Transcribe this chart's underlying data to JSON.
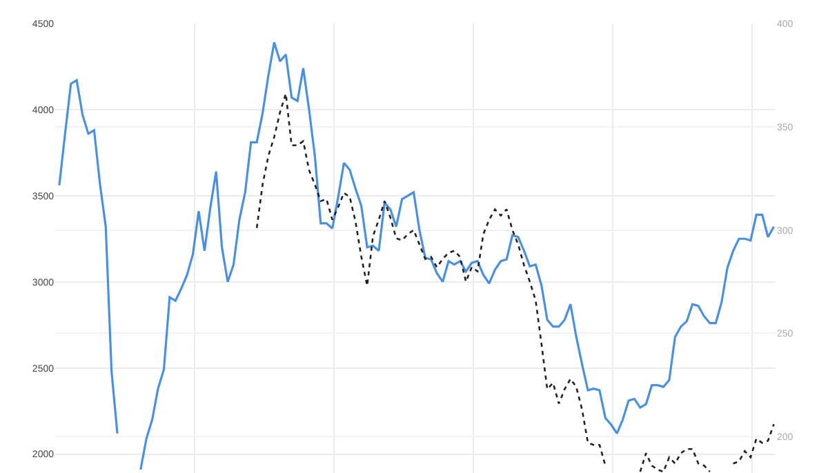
{
  "chart_data": {
    "type": "line",
    "categories": [
      null,
      null,
      null,
      null,
      null,
      null,
      null,
      null,
      null,
      null,
      null,
      null,
      null,
      null,
      null,
      null,
      null,
      null,
      null,
      null,
      null,
      null,
      null,
      null,
      null,
      null,
      null,
      null,
      null,
      null,
      null,
      null,
      null,
      null,
      null,
      null,
      null,
      null,
      null,
      null,
      null,
      null,
      null,
      null,
      null,
      null,
      null,
      null,
      null,
      null,
      null,
      null,
      null,
      null,
      null,
      null,
      null,
      null,
      null,
      null,
      null,
      null,
      null,
      null,
      null,
      null,
      null,
      null,
      null,
      null,
      null,
      null,
      null,
      null,
      null,
      null,
      null,
      null,
      null,
      null,
      null,
      null,
      null,
      null,
      null,
      null,
      null,
      null,
      null,
      null,
      null,
      null,
      null,
      null,
      null,
      null,
      null,
      null,
      null,
      null,
      null,
      null,
      null,
      null,
      null,
      null,
      null,
      null,
      null,
      null,
      null,
      null,
      null,
      null,
      null,
      null,
      null,
      null,
      null,
      null,
      null,
      null,
      null,
      null
    ],
    "series": [
      {
        "color": "#4a90e2",
        "line_style": "solid",
        "values": [
          3560,
          3860,
          4150,
          4170,
          3970,
          3860,
          3880,
          3570,
          3320,
          2480,
          2120,
          null,
          null,
          null,
          null,
          null,
          null,
          null,
          null,
          null,
          null,
          null,
          null,
          null,
          null,
          null,
          null,
          null,
          null,
          null,
          null,
          null,
          null,
          null,
          null,
          null,
          null,
          null,
          null,
          null,
          null,
          null,
          null,
          null,
          null,
          null,
          null,
          null,
          null,
          null,
          null,
          null,
          null,
          null,
          null,
          null,
          null,
          null,
          null,
          null,
          null,
          null,
          null,
          null,
          null,
          null,
          null,
          null,
          null,
          null,
          null,
          null,
          null,
          null,
          null,
          null,
          null,
          null,
          null,
          null,
          null,
          null,
          null,
          null,
          null,
          null,
          null,
          null,
          null,
          null,
          null,
          null,
          null,
          null,
          null,
          null,
          null,
          null,
          null,
          null,
          null,
          null,
          null,
          null,
          null,
          null,
          null,
          null,
          null,
          null,
          null,
          null,
          null,
          null,
          null,
          null,
          null,
          null,
          null,
          null,
          null,
          null,
          null,
          null
        ]
      },
      {
        "color": "#4a90e2",
        "line_style": "solid",
        "values": [
          null,
          null,
          null,
          null,
          null,
          null,
          null,
          null,
          null,
          null,
          null,
          null,
          null,
          null,
          1910,
          2090,
          2200,
          2380,
          2490,
          2910,
          2890,
          2960,
          3040,
          3160,
          3410,
          3180,
          3430,
          3640,
          3200,
          3000,
          3100,
          3360,
          3520,
          3810,
          3810,
          3980,
          4200,
          4390,
          4280,
          4320,
          4070,
          4050,
          4240,
          4000,
          3730,
          3340,
          3340,
          3310,
          3490,
          3690,
          3650,
          3540,
          3440,
          3200,
          3210,
          3180,
          3460,
          3420,
          3320,
          3480,
          3500,
          3520,
          3300,
          3140,
          3130,
          3050,
          3000,
          3120,
          3100,
          3120,
          3060,
          3110,
          3120,
          3040,
          2990,
          3070,
          3120,
          3130,
          3270,
          3260,
          3180,
          3090,
          3100,
          2980,
          2780,
          2740,
          2740,
          2780,
          2870,
          2680,
          2520,
          2370,
          2380,
          2370,
          2210,
          2170,
          2120,
          2200,
          2310,
          2320,
          2270,
          2290,
          2400,
          2400,
          2390,
          2430,
          2680,
          2740,
          2770,
          2870,
          2860,
          2800,
          2760,
          2760,
          2880,
          3080,
          3180,
          3250,
          3250,
          3240,
          3390,
          3390,
          3260,
          3320
        ]
      },
      {
        "color": "#222222",
        "line_style": "dotted",
        "axis": "y2",
        "values": [
          null,
          null,
          null,
          null,
          null,
          null,
          null,
          null,
          null,
          null,
          null,
          null,
          null,
          null,
          null,
          null,
          null,
          null,
          null,
          null,
          null,
          null,
          null,
          null,
          null,
          null,
          null,
          null,
          null,
          null,
          null,
          null,
          null,
          null,
          301,
          322,
          336,
          345,
          357,
          366,
          341,
          341,
          343,
          329,
          322,
          314,
          315,
          305,
          311,
          318,
          316,
          304,
          287,
          273,
          297,
          305,
          314,
          306,
          296,
          295,
          298,
          300,
          293,
          286,
          287,
          282,
          286,
          289,
          290,
          287,
          275,
          282,
          280,
          298,
          305,
          310,
          307,
          310,
          300,
          293,
          283,
          275,
          266,
          245,
          223,
          226,
          216,
          223,
          228,
          224,
          213,
          197,
          196,
          196,
          186,
          null,
          null,
          null,
          null,
          null,
          null,
          null,
          null,
          null,
          null,
          null,
          null,
          null,
          null,
          null,
          null,
          null,
          null,
          null,
          null,
          null,
          null,
          null,
          null,
          null,
          null,
          null,
          null,
          null
        ]
      },
      {
        "color": "#222222",
        "line_style": "dotted",
        "axis": "y2",
        "values": [
          null,
          null,
          null,
          null,
          null,
          null,
          null,
          null,
          null,
          null,
          null,
          null,
          null,
          null,
          null,
          null,
          null,
          null,
          null,
          null,
          null,
          null,
          null,
          null,
          null,
          null,
          null,
          null,
          null,
          null,
          null,
          null,
          null,
          null,
          null,
          null,
          null,
          null,
          null,
          null,
          null,
          null,
          null,
          null,
          null,
          null,
          null,
          null,
          null,
          null,
          null,
          null,
          null,
          null,
          null,
          null,
          null,
          null,
          null,
          null,
          null,
          null,
          null,
          null,
          null,
          null,
          null,
          null,
          null,
          null,
          null,
          null,
          null,
          null,
          null,
          null,
          null,
          null,
          null,
          null,
          null,
          null,
          null,
          null,
          null,
          null,
          null,
          null,
          null,
          null,
          null,
          null,
          null,
          null,
          null,
          null,
          null,
          null,
          null,
          null,
          183,
          192,
          186,
          184,
          183,
          190,
          187,
          192,
          194,
          194,
          187,
          186,
          183,
          null,
          null,
          null,
          null,
          null,
          null,
          null,
          null,
          null,
          null,
          null
        ]
      },
      {
        "color": "#222222",
        "line_style": "dotted",
        "axis": "y2",
        "values": [
          null,
          null,
          null,
          null,
          null,
          null,
          null,
          null,
          null,
          null,
          null,
          null,
          null,
          null,
          null,
          null,
          null,
          null,
          null,
          null,
          null,
          null,
          null,
          null,
          null,
          null,
          null,
          null,
          null,
          null,
          null,
          null,
          null,
          null,
          null,
          null,
          null,
          null,
          null,
          null,
          null,
          null,
          null,
          null,
          null,
          null,
          null,
          null,
          null,
          null,
          null,
          null,
          null,
          null,
          null,
          null,
          null,
          null,
          null,
          null,
          null,
          null,
          null,
          null,
          null,
          null,
          null,
          null,
          null,
          null,
          null,
          null,
          null,
          null,
          null,
          null,
          null,
          null,
          null,
          null,
          null,
          null,
          null,
          null,
          null,
          null,
          null,
          null,
          null,
          null,
          null,
          null,
          null,
          null,
          null,
          null,
          null,
          null,
          null,
          null,
          null,
          null,
          null,
          null,
          null,
          null,
          null,
          null,
          null,
          null,
          null,
          null,
          null,
          null,
          null,
          null,
          187,
          188,
          193,
          190,
          199,
          197,
          198,
          206
        ]
      }
    ],
    "ylim": [
      1890,
      4500
    ],
    "yticks": [
      2000,
      2500,
      3000,
      3500,
      4000,
      4500
    ],
    "y2lim": [
      182.4,
      400
    ],
    "y2ticks": [
      200,
      250,
      300,
      350,
      400
    ],
    "grid": true,
    "marker": "none"
  }
}
